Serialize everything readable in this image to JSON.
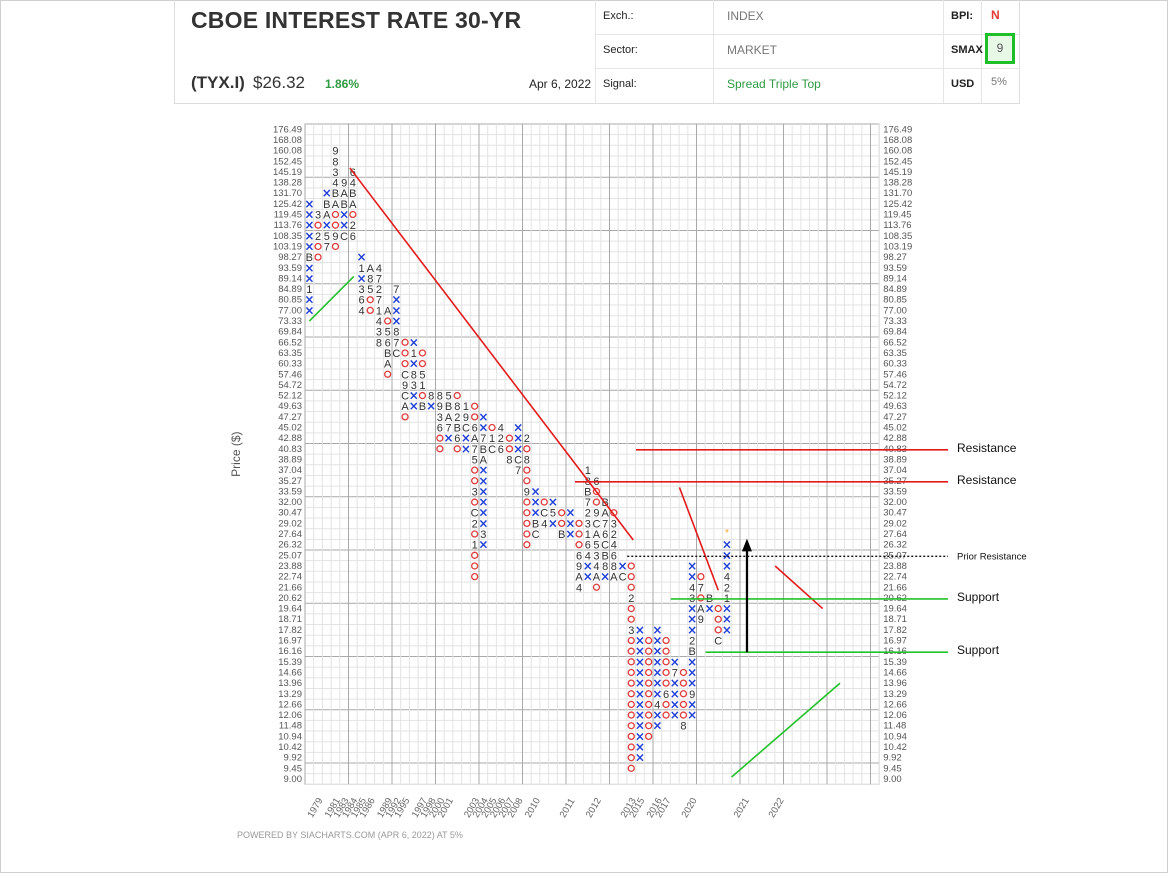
{
  "header": {
    "title": "CBOE INTEREST RATE 30-YR",
    "symbol": "(TYX.I)",
    "price": "$26.32",
    "change": "1.86%",
    "date": "Apr 6, 2022",
    "exch_label": "Exch.:",
    "exch_value": "INDEX",
    "sector_label": "Sector:",
    "sector_value": "MARKET",
    "signal_label": "Signal:",
    "signal_value": "Spread Triple Top",
    "bpi_label": "BPI:",
    "bpi_value": "N",
    "smax_label": "SMAX",
    "smax_value": "9",
    "usd_label": "USD",
    "usd_value": "5%"
  },
  "footer": "POWERED BY SIACHARTS.COM (APR 6, 2022) AT 5%",
  "colors": {
    "x": "#1f3fd6",
    "o": "#e03b3b",
    "trend_red": "#e41a1a",
    "trend_green": "#22c22a",
    "label": "#333333"
  },
  "chart_data": {
    "type": "point-and-figure",
    "ylabel": "Price ($)",
    "y_ticks": [
      "176.49",
      "168.08",
      "160.08",
      "152.45",
      "145.19",
      "138.28",
      "131.70",
      "125.42",
      "119.45",
      "113.76",
      "108.35",
      "103.19",
      "98.27",
      "93.59",
      "89.14",
      "84.89",
      "80.85",
      "77.00",
      "73.33",
      "69.84",
      "66.52",
      "63.35",
      "60.33",
      "57.46",
      "54.72",
      "52.12",
      "49.63",
      "47.27",
      "45.02",
      "42.88",
      "40.83",
      "38.89",
      "37.04",
      "35.27",
      "33.59",
      "32.00",
      "30.47",
      "29.02",
      "27.64",
      "26.32",
      "25.07",
      "23.88",
      "22.74",
      "21.66",
      "20.62",
      "19.64",
      "18.71",
      "17.82",
      "16.97",
      "16.16",
      "15.39",
      "14.66",
      "13.96",
      "13.29",
      "12.66",
      "12.06",
      "11.48",
      "10.94",
      "10.42",
      "9.92",
      "9.45",
      "9.00"
    ],
    "x_year_labels": [
      {
        "col": 0,
        "label": "1979"
      },
      {
        "col": 2,
        "label": "1981"
      },
      {
        "col": 3,
        "label": "1983"
      },
      {
        "col": 4,
        "label": "1984"
      },
      {
        "col": 5,
        "label": "1985"
      },
      {
        "col": 6,
        "label": "1986"
      },
      {
        "col": 8,
        "label": "1989"
      },
      {
        "col": 9,
        "label": "1992"
      },
      {
        "col": 10,
        "label": "1995"
      },
      {
        "col": 12,
        "label": "1997"
      },
      {
        "col": 13,
        "label": "1998"
      },
      {
        "col": 14,
        "label": "2000"
      },
      {
        "col": 15,
        "label": "2001"
      },
      {
        "col": 18,
        "label": "2003"
      },
      {
        "col": 19,
        "label": "2004"
      },
      {
        "col": 20,
        "label": "2005"
      },
      {
        "col": 21,
        "label": "2006"
      },
      {
        "col": 22,
        "label": "2007"
      },
      {
        "col": 23,
        "label": "2008"
      },
      {
        "col": 25,
        "label": "2010"
      },
      {
        "col": 29,
        "label": "2011"
      },
      {
        "col": 32,
        "label": "2012"
      },
      {
        "col": 36,
        "label": "2013"
      },
      {
        "col": 37,
        "label": "2015"
      },
      {
        "col": 39,
        "label": "2016"
      },
      {
        "col": 40,
        "label": "2017"
      },
      {
        "col": 43,
        "label": "2020"
      },
      {
        "col": 49,
        "label": "2021"
      },
      {
        "col": 53,
        "label": "2022"
      }
    ],
    "columns": [
      {
        "c": 0,
        "t": "X",
        "b": 17,
        "e": 7,
        "m": {
          "12": "B",
          "15": "1"
        }
      },
      {
        "c": 1,
        "t": "O",
        "b": 8,
        "e": 12,
        "m": {
          "8": "3",
          "10": "2"
        }
      },
      {
        "c": 2,
        "t": "X",
        "b": 6,
        "e": 11,
        "m": {
          "7": "B",
          "8": "A",
          "10": "5",
          "11": "7"
        }
      },
      {
        "c": 3,
        "t": "O",
        "b": 2,
        "e": 11,
        "m": {
          "2": "9",
          "3": "8",
          "4": "3",
          "5": "4",
          "6": "B",
          "7": "A",
          "10": "9"
        }
      },
      {
        "c": 4,
        "t": "X",
        "b": 5,
        "e": 10,
        "m": {
          "5": "9",
          "6": "A",
          "7": "B",
          "10": "C"
        }
      },
      {
        "c": 5,
        "t": "O",
        "b": 4,
        "e": 10,
        "m": {
          "4": "6",
          "5": "4",
          "6": "B",
          "7": "A",
          "9": "2",
          "10": "6",
          "11": "B"
        }
      },
      {
        "c": 6,
        "t": "X",
        "b": 17,
        "e": 12,
        "m": {
          "13": "1",
          "15": "3",
          "16": "6",
          "17": "4"
        }
      },
      {
        "c": 7,
        "t": "O",
        "b": 13,
        "e": 17,
        "m": {
          "13": "A",
          "14": "8",
          "15": "5",
          "18": "7"
        }
      },
      {
        "c": 8,
        "t": "X",
        "b": 20,
        "e": 13,
        "m": {
          "13": "4",
          "14": "7",
          "15": "2",
          "16": "7",
          "17": "1",
          "18": "4",
          "19": "3",
          "20": "8",
          "21": "9"
        }
      },
      {
        "c": 9,
        "t": "O",
        "b": 17,
        "e": 23,
        "m": {
          "17": "A",
          "19": "5",
          "20": "6",
          "21": "B",
          "22": "A"
        }
      },
      {
        "c": 10,
        "t": "X",
        "b": 21,
        "e": 15,
        "m": {
          "15": "7",
          "19": "8",
          "20": "7",
          "21": "C",
          "22": "1"
        }
      },
      {
        "c": 11,
        "t": "O",
        "b": 20,
        "e": 27,
        "m": {
          "19": "6",
          "23": "C",
          "24": "9",
          "25": "C",
          "26": "A"
        }
      },
      {
        "c": 12,
        "t": "X",
        "b": 26,
        "e": 20,
        "m": {
          "23": "8",
          "24": "3",
          "21": "1"
        }
      },
      {
        "c": 13,
        "t": "O",
        "b": 21,
        "e": 26,
        "m": {
          "23": "5",
          "24": "1",
          "26": "B"
        }
      },
      {
        "c": 14,
        "t": "X",
        "b": 26,
        "e": 25,
        "m": {
          "25": "8",
          "24": "8",
          "23": "4"
        }
      },
      {
        "c": 15,
        "t": "O",
        "b": 25,
        "e": 30,
        "m": {
          "24": "5",
          "25": "8",
          "26": "9",
          "27": "3",
          "28": "6"
        }
      },
      {
        "c": 16,
        "t": "X",
        "b": 29,
        "e": 25,
        "m": {
          "26": "B",
          "27": "A",
          "28": "7",
          "25": "5"
        }
      },
      {
        "c": 17,
        "t": "O",
        "b": 25,
        "e": 30,
        "m": {
          "26": "8",
          "27": "2",
          "28": "B",
          "29": "6"
        }
      },
      {
        "c": 18,
        "t": "X",
        "b": 30,
        "e": 26,
        "m": {
          "26": "1",
          "27": "9",
          "28": "C"
        }
      },
      {
        "c": 19,
        "t": "O",
        "b": 26,
        "e": 42,
        "m": {
          "28": "6",
          "29": "A",
          "30": "7",
          "31": "5",
          "34": "3",
          "36": "C",
          "37": "2",
          "39": "1"
        }
      },
      {
        "c": 20,
        "t": "X",
        "b": 39,
        "e": 27,
        "m": {
          "29": "7",
          "30": "B",
          "31": "A",
          "38": "3"
        }
      },
      {
        "c": 21,
        "t": "O",
        "b": 28,
        "e": 30,
        "m": {
          "29": "1",
          "30": "C"
        }
      },
      {
        "c": 22,
        "t": "X",
        "b": 30,
        "e": 28,
        "m": {
          "28": "4",
          "29": "2",
          "30": "6"
        }
      },
      {
        "c": 23,
        "t": "O",
        "b": 29,
        "e": 31,
        "m": {
          "31": "8"
        }
      },
      {
        "c": 24,
        "t": "X",
        "b": 32,
        "e": 28,
        "m": {
          "32": "7",
          "31": "C"
        }
      },
      {
        "c": 25,
        "t": "O",
        "b": 29,
        "e": 39,
        "m": {
          "29": "2",
          "31": "8",
          "34": "9"
        }
      },
      {
        "c": 26,
        "t": "X",
        "b": 38,
        "e": 34,
        "m": {
          "37": "B",
          "38": "C"
        }
      },
      {
        "c": 27,
        "t": "O",
        "b": 35,
        "e": 37,
        "m": {
          "36": "C",
          "37": "4",
          "38": "1"
        }
      },
      {
        "c": 28,
        "t": "X",
        "b": 37,
        "e": 35,
        "m": {
          "36": "5"
        }
      },
      {
        "c": 29,
        "t": "O",
        "b": 36,
        "e": 38,
        "m": {
          "38": "B"
        }
      },
      {
        "c": 30,
        "t": "X",
        "b": 38,
        "e": 36,
        "m": {
          "39": "7"
        }
      },
      {
        "c": 31,
        "t": "O",
        "b": 37,
        "e": 43,
        "m": {
          "40": "6",
          "41": "9",
          "42": "A",
          "43": "4"
        }
      },
      {
        "c": 32,
        "t": "X",
        "b": 42,
        "e": 32,
        "m": {
          "32": "1",
          "33": "8",
          "34": "B",
          "35": "7",
          "36": "2",
          "37": "3",
          "38": "1",
          "39": "6",
          "40": "4"
        }
      },
      {
        "c": 33,
        "t": "O",
        "b": 33,
        "e": 43,
        "m": {
          "33": "6",
          "36": "9",
          "37": "C",
          "38": "A",
          "39": "5",
          "40": "3",
          "41": "4",
          "42": "A"
        }
      },
      {
        "c": 34,
        "t": "X",
        "b": 42,
        "e": 35,
        "m": {
          "35": "B",
          "36": "A",
          "37": "7",
          "38": "6",
          "39": "C",
          "40": "B",
          "41": "8"
        }
      },
      {
        "c": 35,
        "t": "O",
        "b": 36,
        "e": 42,
        "m": {
          "37": "3",
          "38": "2",
          "39": "4",
          "40": "6",
          "41": "8",
          "42": "A"
        }
      },
      {
        "c": 36,
        "t": "X",
        "b": 42,
        "e": 41,
        "m": {
          "42": "C",
          "43": "9"
        }
      },
      {
        "c": 37,
        "t": "O",
        "b": 41,
        "e": 60,
        "m": {
          "44": "2",
          "47": "3"
        }
      },
      {
        "c": 38,
        "t": "X",
        "b": 59,
        "e": 47,
        "m": {}
      },
      {
        "c": 39,
        "t": "O",
        "b": 48,
        "e": 57,
        "m": {}
      },
      {
        "c": 40,
        "t": "X",
        "b": 56,
        "e": 47,
        "m": {
          "54": "4"
        }
      },
      {
        "c": 41,
        "t": "O",
        "b": 48,
        "e": 55,
        "m": {
          "53": "6"
        }
      },
      {
        "c": 42,
        "t": "X",
        "b": 55,
        "e": 50,
        "m": {
          "51": "7"
        }
      },
      {
        "c": 43,
        "t": "O",
        "b": 51,
        "e": 56,
        "m": {
          "56": "8"
        }
      },
      {
        "c": 44,
        "t": "X",
        "b": 55,
        "e": 41,
        "m": {
          "43": "4",
          "44": "3",
          "48": "2",
          "49": "B",
          "53": "9"
        }
      },
      {
        "c": 45,
        "t": "O",
        "b": 42,
        "e": 46,
        "m": {
          "43": "7",
          "45": "A",
          "46": "9"
        }
      },
      {
        "c": 46,
        "t": "X",
        "b": 45,
        "e": 44,
        "m": {
          "44": "B"
        }
      },
      {
        "c": 47,
        "t": "O",
        "b": 45,
        "e": 48,
        "m": {
          "48": "C"
        }
      },
      {
        "c": 48,
        "t": "X",
        "b": 47,
        "e": 39,
        "m": {
          "42": "4",
          "43": "2",
          "44": "1"
        }
      }
    ],
    "annotations": [
      "Resistance",
      "Resistance",
      "Prior Resistance",
      "Support",
      "Support"
    ]
  }
}
